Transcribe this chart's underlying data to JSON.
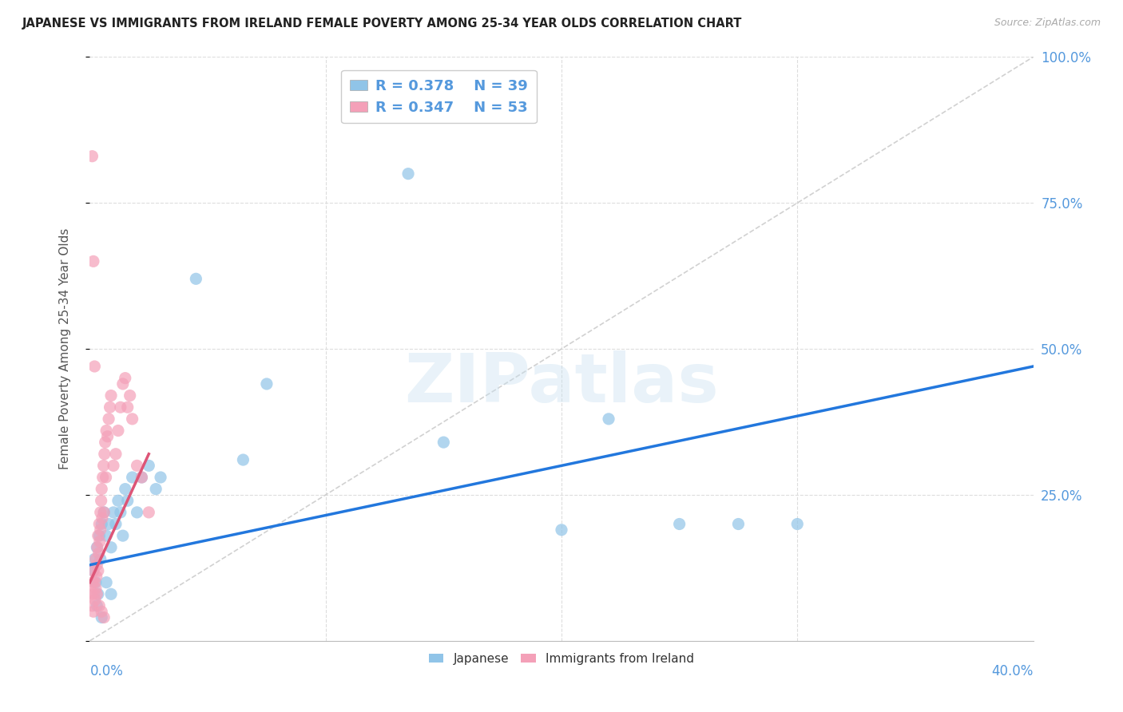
{
  "title": "JAPANESE VS IMMIGRANTS FROM IRELAND FEMALE POVERTY AMONG 25-34 YEAR OLDS CORRELATION CHART",
  "source": "Source: ZipAtlas.com",
  "ylabel": "Female Poverty Among 25-34 Year Olds",
  "xlim": [
    0.0,
    40.0
  ],
  "ylim": [
    0.0,
    100.0
  ],
  "yticks": [
    0,
    25,
    50,
    75,
    100
  ],
  "ytick_labels_right": [
    "",
    "25.0%",
    "50.0%",
    "75.0%",
    "100.0%"
  ],
  "watermark": "ZIPatlas",
  "color_blue": "#90c4e8",
  "color_pink": "#f4a0b8",
  "color_axis_text": "#5599dd",
  "trendline_blue": "#2277dd",
  "trendline_pink": "#dd5577",
  "ref_line_color": "#cccccc",
  "grid_color": "#dddddd",
  "jap_trendline": [
    0.0,
    40.0,
    13.0,
    47.0
  ],
  "ire_trendline": [
    0.0,
    2.5,
    10.0,
    32.0
  ],
  "japanese_x": [
    0.15,
    0.2,
    0.25,
    0.3,
    0.35,
    0.4,
    0.45,
    0.5,
    0.6,
    0.7,
    0.8,
    0.9,
    1.0,
    1.1,
    1.2,
    1.3,
    1.5,
    1.6,
    1.8,
    2.0,
    2.2,
    2.5,
    2.8,
    3.0,
    4.5,
    6.5,
    7.5,
    13.5,
    15.0,
    20.0,
    22.0,
    25.0,
    27.5,
    30.0,
    0.3,
    0.5,
    0.7,
    0.9,
    1.4
  ],
  "japanese_y": [
    12.0,
    14.0,
    10.0,
    16.0,
    8.0,
    18.0,
    14.0,
    20.0,
    22.0,
    18.0,
    20.0,
    16.0,
    22.0,
    20.0,
    24.0,
    22.0,
    26.0,
    24.0,
    28.0,
    22.0,
    28.0,
    30.0,
    26.0,
    28.0,
    62.0,
    31.0,
    44.0,
    80.0,
    34.0,
    19.0,
    38.0,
    20.0,
    20.0,
    20.0,
    6.0,
    4.0,
    10.0,
    8.0,
    18.0
  ],
  "ireland_x": [
    0.05,
    0.1,
    0.12,
    0.15,
    0.15,
    0.18,
    0.2,
    0.22,
    0.25,
    0.25,
    0.28,
    0.3,
    0.3,
    0.32,
    0.35,
    0.35,
    0.38,
    0.4,
    0.42,
    0.45,
    0.45,
    0.48,
    0.5,
    0.52,
    0.55,
    0.58,
    0.6,
    0.62,
    0.65,
    0.68,
    0.7,
    0.75,
    0.8,
    0.85,
    0.9,
    1.0,
    1.1,
    1.2,
    1.3,
    1.4,
    1.5,
    1.6,
    1.7,
    1.8,
    2.0,
    2.2,
    2.5,
    0.1,
    0.15,
    0.2,
    0.5,
    0.6,
    0.4
  ],
  "ireland_y": [
    8.0,
    6.0,
    10.0,
    5.0,
    12.0,
    8.0,
    10.0,
    7.0,
    9.0,
    14.0,
    11.0,
    13.0,
    8.0,
    16.0,
    12.0,
    18.0,
    15.0,
    20.0,
    17.0,
    22.0,
    19.0,
    24.0,
    26.0,
    21.0,
    28.0,
    30.0,
    22.0,
    32.0,
    34.0,
    28.0,
    36.0,
    35.0,
    38.0,
    40.0,
    42.0,
    30.0,
    32.0,
    36.0,
    40.0,
    44.0,
    45.0,
    40.0,
    42.0,
    38.0,
    30.0,
    28.0,
    22.0,
    83.0,
    65.0,
    47.0,
    5.0,
    4.0,
    6.0
  ]
}
